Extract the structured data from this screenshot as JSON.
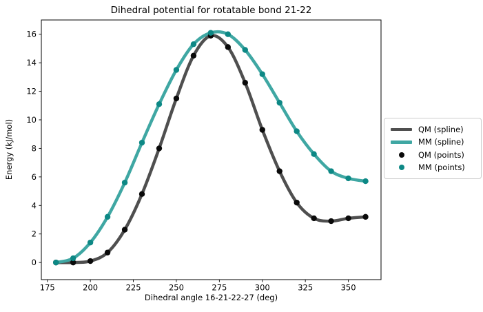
{
  "chart_data": {
    "type": "line",
    "title": "Dihedral potential for rotatable bond 21-22",
    "xlabel": "Dihedral angle 16-21-22-27 (deg)",
    "ylabel": "Energy (kJ/mol)",
    "x": [
      180,
      190,
      200,
      210,
      220,
      230,
      240,
      250,
      260,
      270,
      280,
      290,
      300,
      310,
      320,
      330,
      340,
      350,
      360
    ],
    "series": [
      {
        "name": "QM (spline)",
        "style": "spline",
        "color": "#4f4f4f",
        "values": [
          0.0,
          0.0,
          0.1,
          0.7,
          2.3,
          4.8,
          8.0,
          11.5,
          14.5,
          15.9,
          15.1,
          12.6,
          9.3,
          6.4,
          4.2,
          3.1,
          2.9,
          3.1,
          3.2
        ]
      },
      {
        "name": "MM (spline)",
        "style": "spline",
        "color": "#3fa7a3",
        "values": [
          0.0,
          0.3,
          1.4,
          3.2,
          5.6,
          8.4,
          11.1,
          13.5,
          15.3,
          16.1,
          16.0,
          14.9,
          13.2,
          11.2,
          9.2,
          7.6,
          6.4,
          5.9,
          5.7
        ]
      },
      {
        "name": "QM (points)",
        "style": "scatter",
        "color": "#0a0a0a",
        "values": [
          0.0,
          0.0,
          0.1,
          0.7,
          2.3,
          4.8,
          8.0,
          11.5,
          14.5,
          15.9,
          15.1,
          12.6,
          9.3,
          6.4,
          4.2,
          3.1,
          2.9,
          3.1,
          3.2
        ]
      },
      {
        "name": "MM (points)",
        "style": "scatter",
        "color": "#0d8885",
        "values": [
          0.0,
          0.3,
          1.4,
          3.2,
          5.6,
          8.4,
          11.1,
          13.5,
          15.3,
          16.1,
          16.0,
          14.9,
          13.2,
          11.2,
          9.2,
          7.6,
          6.4,
          5.9,
          5.7
        ]
      }
    ],
    "xticks": [
      175,
      200,
      225,
      250,
      275,
      300,
      325,
      350
    ],
    "yticks": [
      0,
      2,
      4,
      6,
      8,
      10,
      12,
      14,
      16
    ],
    "xlim": [
      171.5,
      369.0
    ],
    "ylim": [
      -1.2,
      17.0
    ],
    "grid": false,
    "legend": {
      "position": "outside-center-right",
      "border_color": "#cccccc",
      "entries": [
        "QM (spline)",
        "MM (spline)",
        "QM (points)",
        "MM (points)"
      ]
    },
    "axis_color": "#000000",
    "background_color": "#ffffff"
  }
}
